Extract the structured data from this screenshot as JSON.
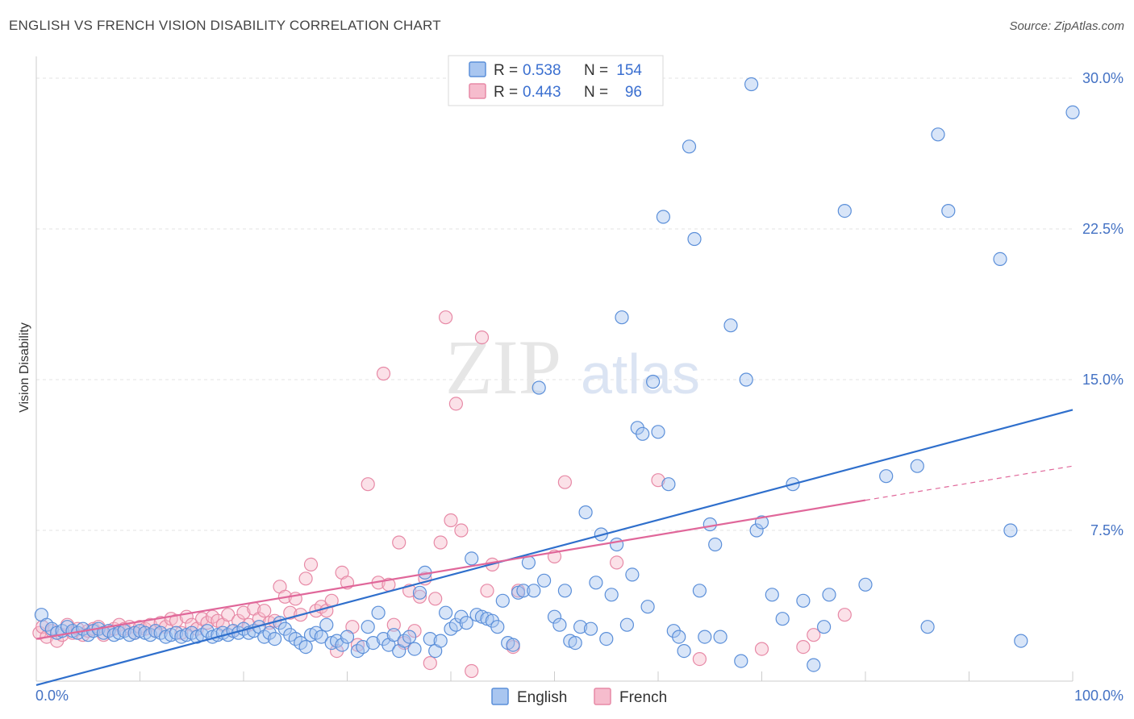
{
  "title": "ENGLISH VS FRENCH VISION DISABILITY CORRELATION CHART",
  "source": "Source: ZipAtlas.com",
  "watermark": {
    "zip": "ZIP",
    "atlas": "atlas"
  },
  "colors": {
    "english_fill": "#a9c6f0",
    "english_stroke": "#5b8fd9",
    "english_line": "#2f6fcc",
    "french_fill": "#f6bccd",
    "french_stroke": "#e789a6",
    "french_line": "#e0679a",
    "grid": "#e3e3e3",
    "axis_text": "#4472c4"
  },
  "stats_box": {
    "rows": [
      {
        "r_label": "R =",
        "r_value": "0.538",
        "n_label": "N =",
        "n_value": "154"
      },
      {
        "r_label": "R =",
        "r_value": "0.443",
        "n_label": "N =",
        "n_value": "96"
      }
    ]
  },
  "legend": {
    "items": [
      "English",
      "French"
    ]
  },
  "chart_data": {
    "type": "scatter",
    "title": "ENGLISH VS FRENCH VISION DISABILITY CORRELATION CHART",
    "xlabel": "",
    "ylabel": "Vision Disability",
    "xlim": [
      0,
      100
    ],
    "ylim": [
      0,
      30.5
    ],
    "x_tick_labels": [
      "0.0%",
      "100.0%"
    ],
    "y_ticks": [
      7.5,
      15.0,
      22.5,
      30.0
    ],
    "y_tick_labels": [
      "7.5%",
      "15.0%",
      "22.5%",
      "30.0%"
    ],
    "grid": true,
    "legend_position": "bottom-center",
    "series": [
      {
        "name": "English",
        "r": 0.538,
        "n": 154,
        "trend": {
          "x": [
            0,
            100
          ],
          "y": [
            -0.2,
            13.5
          ]
        },
        "points": [
          [
            0.5,
            3.3
          ],
          [
            1,
            2.8
          ],
          [
            1.5,
            2.6
          ],
          [
            2,
            2.4
          ],
          [
            2.5,
            2.5
          ],
          [
            3,
            2.7
          ],
          [
            3.5,
            2.5
          ],
          [
            4,
            2.4
          ],
          [
            4.5,
            2.6
          ],
          [
            5,
            2.3
          ],
          [
            5.5,
            2.5
          ],
          [
            6,
            2.6
          ],
          [
            6.5,
            2.4
          ],
          [
            7,
            2.5
          ],
          [
            7.5,
            2.3
          ],
          [
            8,
            2.4
          ],
          [
            8.5,
            2.5
          ],
          [
            9,
            2.3
          ],
          [
            9.5,
            2.4
          ],
          [
            10,
            2.5
          ],
          [
            10.5,
            2.4
          ],
          [
            11,
            2.3
          ],
          [
            11.5,
            2.5
          ],
          [
            12,
            2.4
          ],
          [
            12.5,
            2.2
          ],
          [
            13,
            2.3
          ],
          [
            13.5,
            2.4
          ],
          [
            14,
            2.2
          ],
          [
            14.5,
            2.3
          ],
          [
            15,
            2.4
          ],
          [
            15.5,
            2.2
          ],
          [
            16,
            2.3
          ],
          [
            16.5,
            2.5
          ],
          [
            17,
            2.2
          ],
          [
            17.5,
            2.3
          ],
          [
            18,
            2.4
          ],
          [
            18.5,
            2.3
          ],
          [
            19,
            2.5
          ],
          [
            19.5,
            2.4
          ],
          [
            20,
            2.6
          ],
          [
            20.5,
            2.4
          ],
          [
            21,
            2.5
          ],
          [
            21.5,
            2.7
          ],
          [
            22,
            2.2
          ],
          [
            22.5,
            2.4
          ],
          [
            23,
            2.1
          ],
          [
            23.5,
            2.9
          ],
          [
            24,
            2.6
          ],
          [
            24.5,
            2.3
          ],
          [
            25,
            2.1
          ],
          [
            25.5,
            1.9
          ],
          [
            26,
            1.7
          ],
          [
            26.5,
            2.3
          ],
          [
            27,
            2.4
          ],
          [
            27.5,
            2.2
          ],
          [
            28,
            2.8
          ],
          [
            28.5,
            1.9
          ],
          [
            29,
            2.0
          ],
          [
            29.5,
            1.8
          ],
          [
            30,
            2.2
          ],
          [
            31,
            1.5
          ],
          [
            31.5,
            1.7
          ],
          [
            32,
            2.7
          ],
          [
            32.5,
            1.9
          ],
          [
            33,
            3.4
          ],
          [
            33.5,
            2.1
          ],
          [
            34,
            1.8
          ],
          [
            34.5,
            2.3
          ],
          [
            35,
            1.5
          ],
          [
            35.5,
            2.0
          ],
          [
            36,
            2.2
          ],
          [
            36.5,
            1.6
          ],
          [
            37,
            4.4
          ],
          [
            37.5,
            5.4
          ],
          [
            38,
            2.1
          ],
          [
            38.5,
            1.5
          ],
          [
            39,
            2.0
          ],
          [
            39.5,
            3.4
          ],
          [
            40,
            2.6
          ],
          [
            40.5,
            2.8
          ],
          [
            41,
            3.2
          ],
          [
            41.5,
            2.9
          ],
          [
            42,
            6.1
          ],
          [
            42.5,
            3.3
          ],
          [
            43,
            3.2
          ],
          [
            43.5,
            3.1
          ],
          [
            44,
            3.0
          ],
          [
            44.5,
            2.7
          ],
          [
            45,
            4.0
          ],
          [
            45.5,
            1.9
          ],
          [
            46,
            1.8
          ],
          [
            46.5,
            4.4
          ],
          [
            47,
            4.5
          ],
          [
            47.5,
            5.9
          ],
          [
            48,
            4.5
          ],
          [
            48.5,
            14.6
          ],
          [
            49,
            5.0
          ],
          [
            50,
            3.2
          ],
          [
            50.5,
            2.8
          ],
          [
            51,
            4.5
          ],
          [
            51.5,
            2.0
          ],
          [
            52,
            1.9
          ],
          [
            52.5,
            2.7
          ],
          [
            53,
            8.4
          ],
          [
            53.5,
            2.6
          ],
          [
            54,
            4.9
          ],
          [
            54.5,
            7.3
          ],
          [
            55,
            2.1
          ],
          [
            55.5,
            4.3
          ],
          [
            56,
            6.8
          ],
          [
            56.5,
            18.1
          ],
          [
            57,
            2.8
          ],
          [
            57.5,
            5.3
          ],
          [
            58,
            12.6
          ],
          [
            58.5,
            12.3
          ],
          [
            59,
            3.7
          ],
          [
            59.5,
            14.9
          ],
          [
            60,
            12.4
          ],
          [
            60.5,
            23.1
          ],
          [
            61,
            9.8
          ],
          [
            61.5,
            2.5
          ],
          [
            62,
            2.2
          ],
          [
            62.5,
            1.5
          ],
          [
            63,
            26.6
          ],
          [
            63.5,
            22.0
          ],
          [
            64,
            4.5
          ],
          [
            64.5,
            2.2
          ],
          [
            65,
            7.8
          ],
          [
            65.5,
            6.8
          ],
          [
            66,
            2.2
          ],
          [
            67,
            17.7
          ],
          [
            68,
            1.0
          ],
          [
            68.5,
            15.0
          ],
          [
            69,
            29.7
          ],
          [
            69.5,
            7.5
          ],
          [
            70,
            7.9
          ],
          [
            71,
            4.3
          ],
          [
            72,
            3.1
          ],
          [
            73,
            9.8
          ],
          [
            74,
            4.0
          ],
          [
            75,
            0.8
          ],
          [
            76,
            2.7
          ],
          [
            76.5,
            4.3
          ],
          [
            78,
            23.4
          ],
          [
            80,
            4.8
          ],
          [
            82,
            10.2
          ],
          [
            85,
            10.7
          ],
          [
            86,
            2.7
          ],
          [
            87,
            27.2
          ],
          [
            88,
            23.4
          ],
          [
            93,
            21.0
          ],
          [
            94,
            7.5
          ],
          [
            95,
            2.0
          ],
          [
            100,
            28.3
          ]
        ]
      },
      {
        "name": "French",
        "r": 0.443,
        "n": 96,
        "trend": {
          "x": [
            0,
            80
          ],
          "y": [
            2.1,
            9.0
          ]
        },
        "trend_extension": {
          "x": [
            80,
            100
          ],
          "y": [
            9.0,
            10.7
          ]
        },
        "points": [
          [
            0.3,
            2.4
          ],
          [
            0.6,
            2.7
          ],
          [
            1,
            2.2
          ],
          [
            1.5,
            2.5
          ],
          [
            2,
            2.0
          ],
          [
            2.5,
            2.3
          ],
          [
            3,
            2.8
          ],
          [
            3.5,
            2.4
          ],
          [
            4,
            2.6
          ],
          [
            4.5,
            2.3
          ],
          [
            5,
            2.5
          ],
          [
            5.5,
            2.6
          ],
          [
            6,
            2.7
          ],
          [
            6.5,
            2.3
          ],
          [
            7,
            2.5
          ],
          [
            7.5,
            2.6
          ],
          [
            8,
            2.8
          ],
          [
            8.5,
            2.6
          ],
          [
            9,
            2.7
          ],
          [
            9.5,
            2.4
          ],
          [
            10,
            2.7
          ],
          [
            10.5,
            2.6
          ],
          [
            11,
            2.8
          ],
          [
            11.5,
            2.5
          ],
          [
            12,
            2.9
          ],
          [
            12.5,
            2.7
          ],
          [
            13,
            3.1
          ],
          [
            13.5,
            3.0
          ],
          [
            14,
            2.4
          ],
          [
            14.5,
            3.2
          ],
          [
            15,
            2.8
          ],
          [
            15.5,
            2.6
          ],
          [
            16,
            3.1
          ],
          [
            16.5,
            2.9
          ],
          [
            17,
            3.2
          ],
          [
            17.5,
            3.0
          ],
          [
            18,
            2.8
          ],
          [
            18.5,
            3.3
          ],
          [
            19,
            2.5
          ],
          [
            19.5,
            3.0
          ],
          [
            20,
            3.4
          ],
          [
            20.5,
            2.8
          ],
          [
            21,
            3.6
          ],
          [
            21.5,
            3.1
          ],
          [
            22,
            3.5
          ],
          [
            22.5,
            2.9
          ],
          [
            23,
            3.0
          ],
          [
            23.5,
            4.7
          ],
          [
            24,
            4.2
          ],
          [
            24.5,
            3.4
          ],
          [
            25,
            4.1
          ],
          [
            25.5,
            3.3
          ],
          [
            26,
            5.1
          ],
          [
            26.5,
            5.8
          ],
          [
            27,
            3.5
          ],
          [
            27.5,
            3.7
          ],
          [
            28,
            3.5
          ],
          [
            28.5,
            4.0
          ],
          [
            29,
            1.5
          ],
          [
            29.5,
            5.4
          ],
          [
            30,
            4.9
          ],
          [
            30.5,
            2.7
          ],
          [
            31,
            1.8
          ],
          [
            32,
            9.8
          ],
          [
            33,
            4.9
          ],
          [
            33.5,
            15.3
          ],
          [
            34,
            4.8
          ],
          [
            34.5,
            2.8
          ],
          [
            35,
            6.9
          ],
          [
            35.5,
            1.9
          ],
          [
            36,
            4.5
          ],
          [
            36.5,
            2.5
          ],
          [
            37,
            4.2
          ],
          [
            37.5,
            5.1
          ],
          [
            38,
            0.9
          ],
          [
            38.5,
            4.1
          ],
          [
            39,
            6.9
          ],
          [
            39.5,
            18.1
          ],
          [
            40,
            8.0
          ],
          [
            40.5,
            13.8
          ],
          [
            41,
            7.5
          ],
          [
            42,
            0.5
          ],
          [
            43,
            17.1
          ],
          [
            43.5,
            4.5
          ],
          [
            44,
            5.8
          ],
          [
            46,
            1.7
          ],
          [
            46.5,
            4.5
          ],
          [
            50,
            6.2
          ],
          [
            51,
            9.9
          ],
          [
            56,
            5.9
          ],
          [
            60,
            10.0
          ],
          [
            64,
            1.1
          ],
          [
            70,
            1.6
          ],
          [
            74,
            1.7
          ],
          [
            75,
            2.3
          ],
          [
            78,
            3.3
          ]
        ]
      }
    ]
  }
}
